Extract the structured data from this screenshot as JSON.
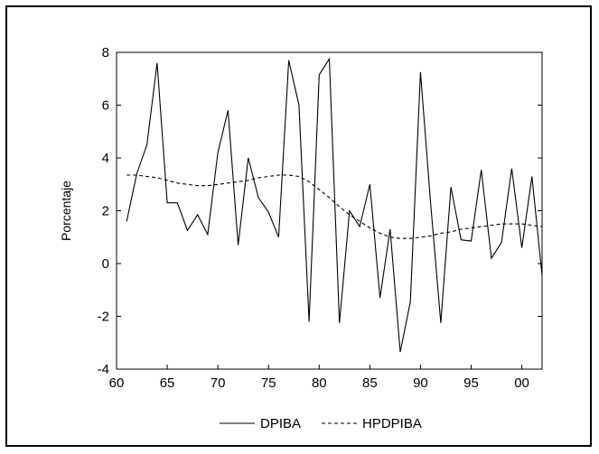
{
  "chart_data": {
    "type": "line",
    "ylabel": "Porcentaje",
    "xlabel": "",
    "xlim": [
      1960,
      2002
    ],
    "ylim": [
      -4,
      8
    ],
    "xticks": [
      1960,
      1965,
      1970,
      1975,
      1980,
      1985,
      1990,
      1995,
      2000
    ],
    "xtick_labels": [
      "60",
      "65",
      "70",
      "75",
      "80",
      "85",
      "90",
      "95",
      "00"
    ],
    "yticks": [
      -4,
      -2,
      0,
      2,
      4,
      6,
      8
    ],
    "ytick_labels": [
      "-4",
      "-2",
      "0",
      "2",
      "4",
      "6",
      "8"
    ],
    "grid": false,
    "legend_position": "bottom",
    "x": [
      1961,
      1962,
      1963,
      1964,
      1965,
      1966,
      1967,
      1968,
      1969,
      1970,
      1971,
      1972,
      1973,
      1974,
      1975,
      1976,
      1977,
      1978,
      1979,
      1980,
      1981,
      1982,
      1983,
      1984,
      1985,
      1986,
      1987,
      1988,
      1989,
      1990,
      1991,
      1992,
      1993,
      1994,
      1995,
      1996,
      1997,
      1998,
      1999,
      2000,
      2001,
      2002
    ],
    "series": [
      {
        "name": "DPIBA",
        "style": "solid",
        "color": "#000000",
        "values": [
          1.6,
          3.4,
          4.5,
          7.6,
          2.3,
          2.3,
          1.25,
          1.85,
          1.1,
          4.2,
          5.8,
          0.7,
          4.0,
          2.5,
          1.95,
          1.0,
          7.7,
          6.0,
          -2.2,
          7.15,
          7.75,
          -2.25,
          2.0,
          1.4,
          3.0,
          -1.3,
          1.3,
          -3.35,
          -1.45,
          7.25,
          2.3,
          -2.25,
          2.9,
          0.9,
          0.85,
          3.55,
          0.2,
          0.8,
          3.6,
          0.6,
          3.3,
          -0.45
        ]
      },
      {
        "name": "HPDPIBA",
        "style": "dashed",
        "color": "#000000",
        "values": [
          3.35,
          3.35,
          3.3,
          3.25,
          3.15,
          3.05,
          3.0,
          2.95,
          2.95,
          3.0,
          3.05,
          3.1,
          3.15,
          3.25,
          3.3,
          3.35,
          3.35,
          3.3,
          3.1,
          2.8,
          2.5,
          2.15,
          1.85,
          1.6,
          1.35,
          1.15,
          1.0,
          0.95,
          0.95,
          1.0,
          1.05,
          1.15,
          1.2,
          1.3,
          1.35,
          1.4,
          1.45,
          1.5,
          1.5,
          1.5,
          1.45,
          1.4
        ]
      }
    ]
  }
}
